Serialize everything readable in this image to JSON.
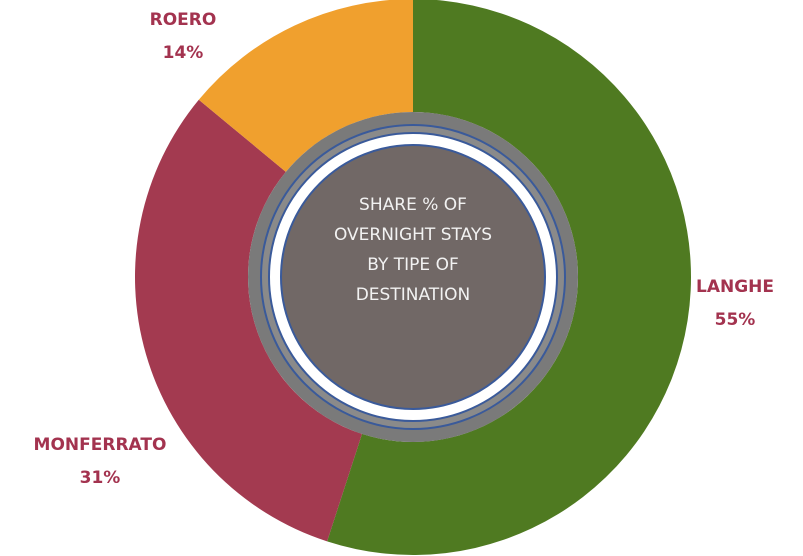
{
  "chart_data": {
    "type": "pie",
    "title": "SHARE % OF OVERNIGHT STAYS BY TIPE OF DESTINATION",
    "categories": [
      "LANGHE",
      "MONFERRATO",
      "ROERO"
    ],
    "values": [
      55,
      31,
      14
    ],
    "value_labels": [
      "55%",
      "31%",
      "14%"
    ],
    "colors": [
      "#4f7a21",
      "#a33a50",
      "#f0a02e"
    ],
    "label_color": "#a3334f"
  }
}
